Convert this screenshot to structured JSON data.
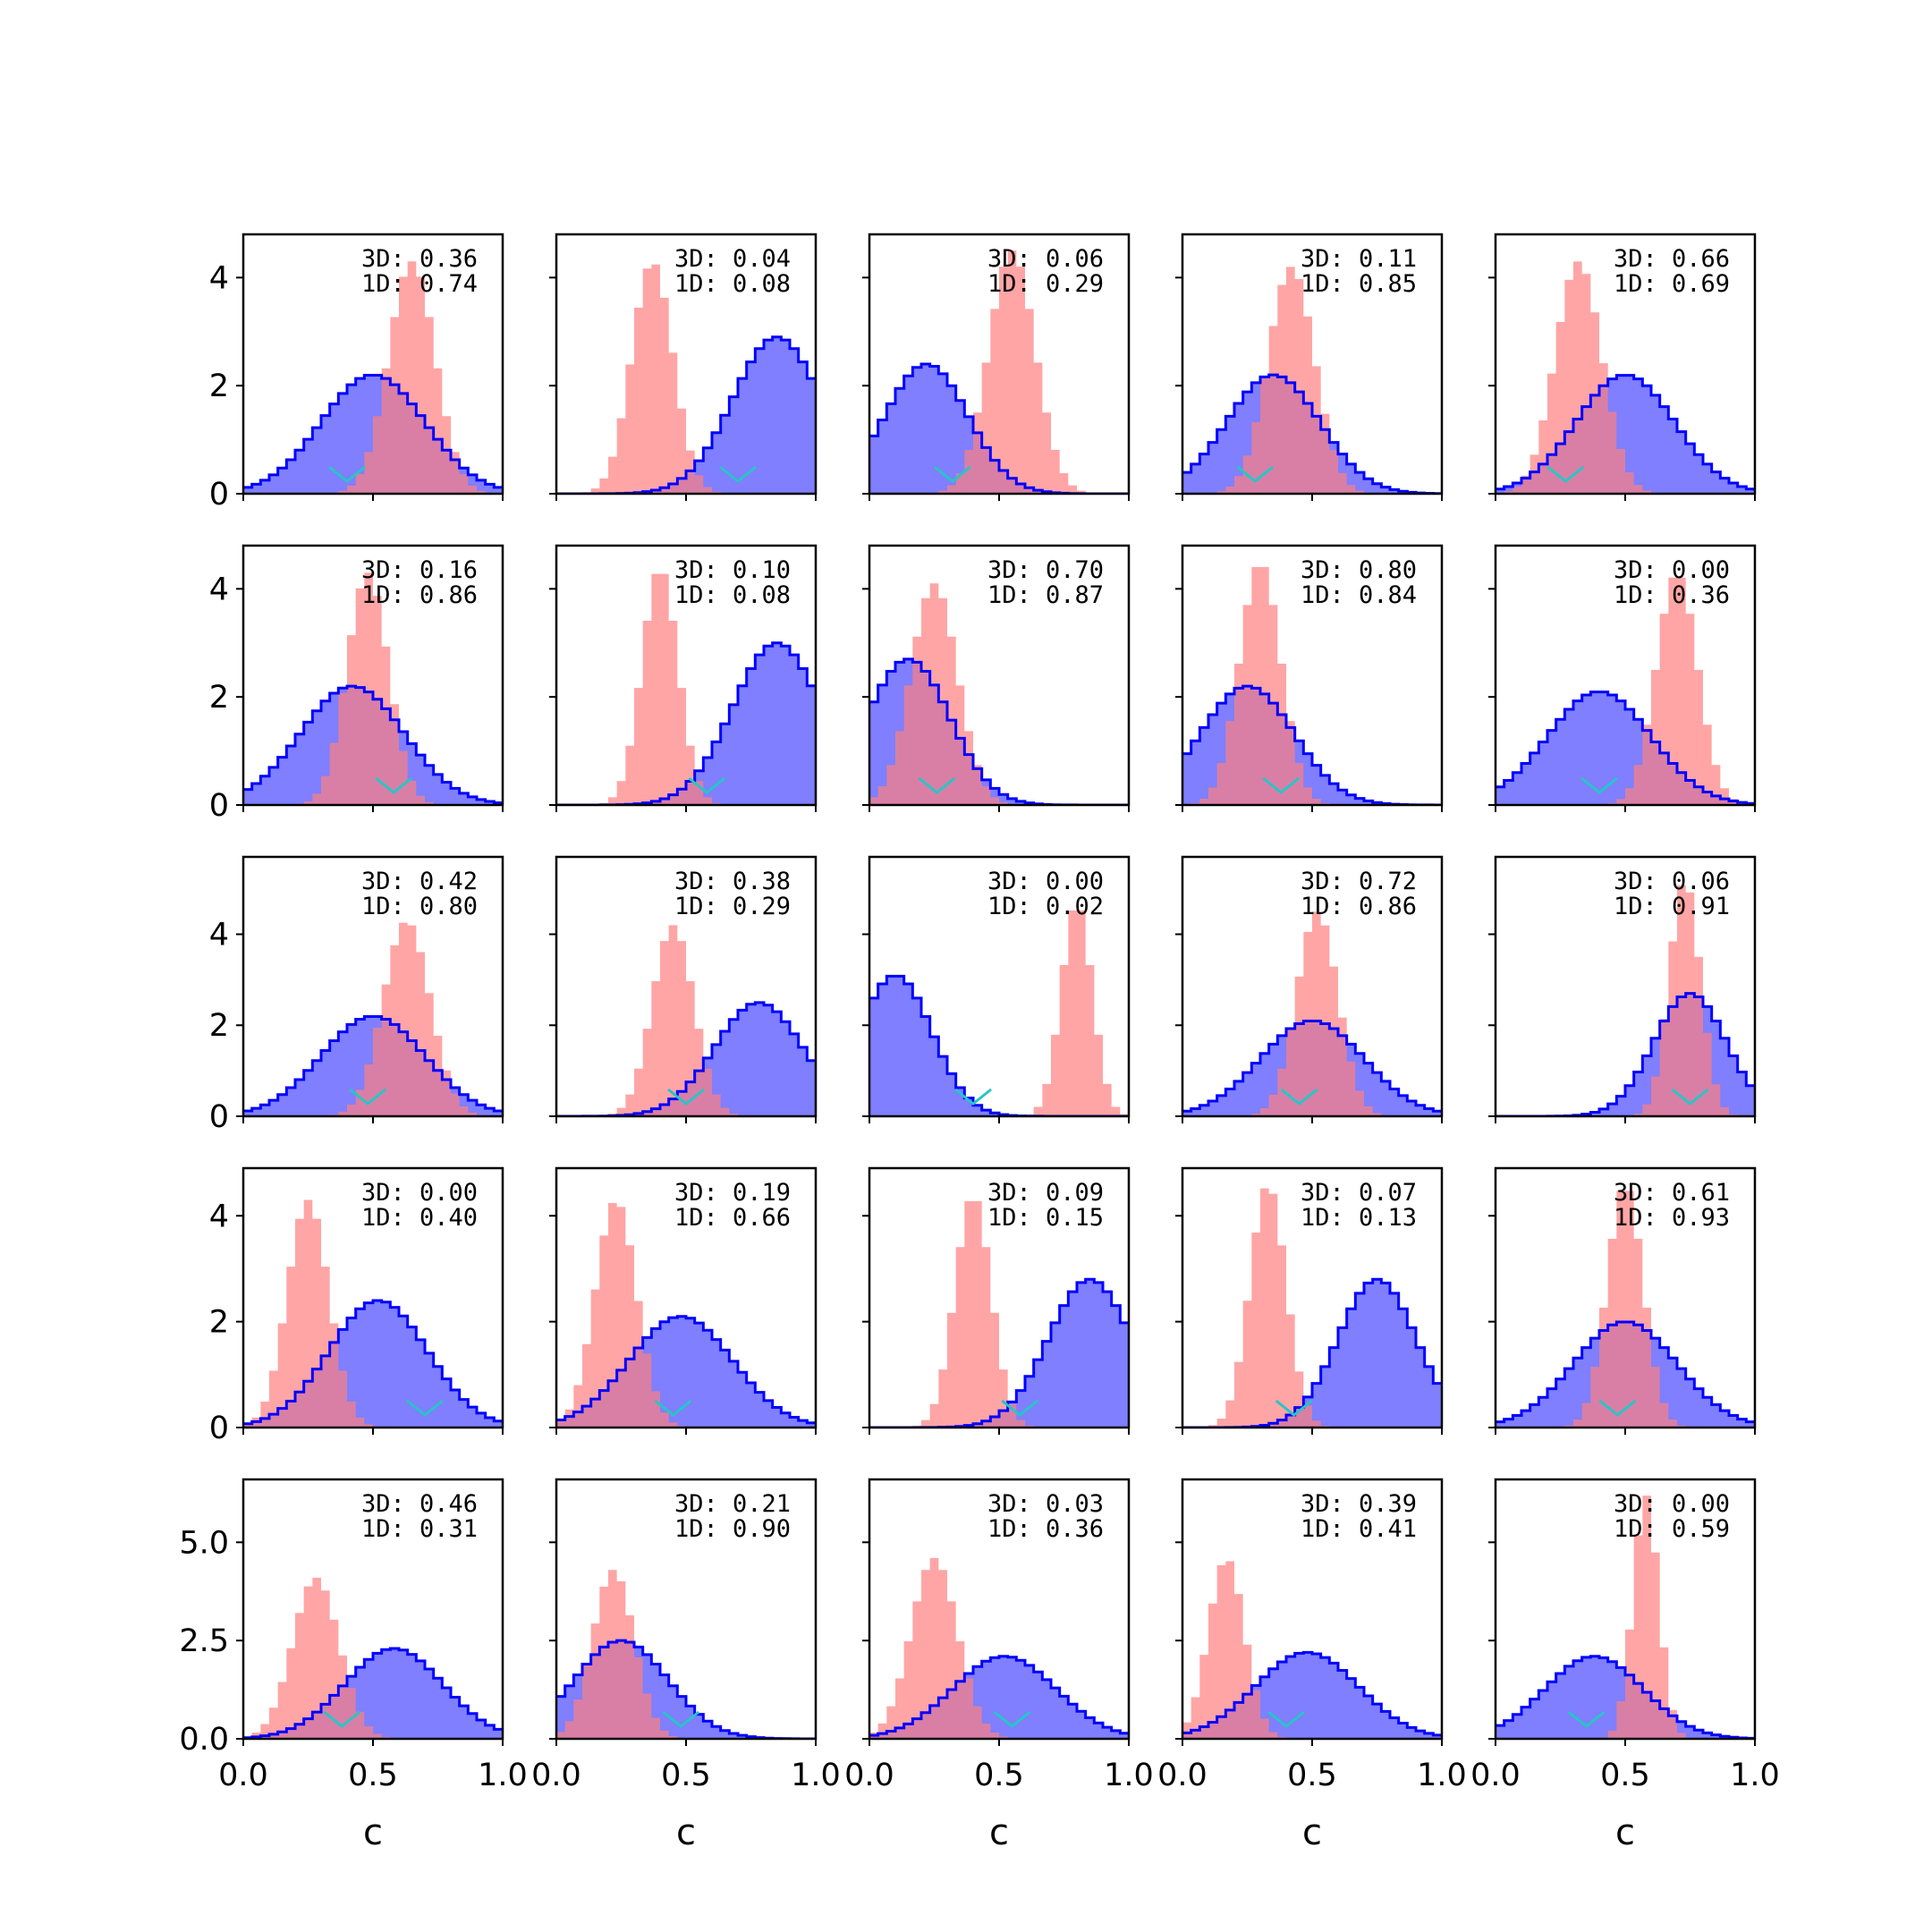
{
  "chart_data": {
    "type": "histogram-grid",
    "rows": 5,
    "cols": 5,
    "xlim": [
      0,
      1
    ],
    "xticks": [
      "0.0",
      "0.5",
      "1.0"
    ],
    "xlabel": "c",
    "row_axes": [
      {
        "ylim": [
          0,
          4.8
        ],
        "yticks": [
          {
            "value": 0,
            "label": "0"
          },
          {
            "value": 2,
            "label": "2"
          },
          {
            "value": 4,
            "label": "4"
          }
        ]
      },
      {
        "ylim": [
          0,
          4.8
        ],
        "yticks": [
          {
            "value": 0,
            "label": "0"
          },
          {
            "value": 2,
            "label": "2"
          },
          {
            "value": 4,
            "label": "4"
          }
        ]
      },
      {
        "ylim": [
          0,
          5.7
        ],
        "yticks": [
          {
            "value": 0,
            "label": "0"
          },
          {
            "value": 2,
            "label": "2"
          },
          {
            "value": 4,
            "label": "4"
          }
        ]
      },
      {
        "ylim": [
          0,
          4.9
        ],
        "yticks": [
          {
            "value": 0,
            "label": "0"
          },
          {
            "value": 2,
            "label": "2"
          },
          {
            "value": 4,
            "label": "4"
          }
        ]
      },
      {
        "ylim": [
          0,
          6.6
        ],
        "yticks": [
          {
            "value": 0,
            "label": "0.0"
          },
          {
            "value": 2.5,
            "label": "2.5"
          },
          {
            "value": 5,
            "label": "5.0"
          }
        ]
      }
    ],
    "colors": {
      "blue_fill": "#7f7fff",
      "blue_edge": "#0000ff",
      "red_fill": "#ff7f7f",
      "marker": "#26c6c6"
    },
    "bins": 30,
    "panels": [
      {
        "row": 0,
        "col": 0,
        "label3d": "3D: 0.36",
        "label1d": "1D: 0.74",
        "blue": {
          "mu": 0.5,
          "sd": 0.2,
          "peak": 2.2
        },
        "red": {
          "mu": 0.65,
          "sd": 0.09,
          "peak": 4.3
        },
        "marker": 0.4
      },
      {
        "row": 0,
        "col": 1,
        "label3d": "3D: 0.04",
        "label1d": "1D: 0.08",
        "blue": {
          "mu": 0.85,
          "sd": 0.17,
          "peak": 2.9
        },
        "red": {
          "mu": 0.37,
          "sd": 0.08,
          "peak": 4.3
        },
        "marker": 0.7
      },
      {
        "row": 0,
        "col": 2,
        "label3d": "3D: 0.06",
        "label1d": "1D: 0.29",
        "blue": {
          "mu": 0.22,
          "sd": 0.16,
          "peak": 2.4
        },
        "red": {
          "mu": 0.55,
          "sd": 0.09,
          "peak": 4.5
        },
        "marker": 0.32
      },
      {
        "row": 0,
        "col": 3,
        "label3d": "3D: 0.11",
        "label1d": "1D: 0.85",
        "blue": {
          "mu": 0.35,
          "sd": 0.18,
          "peak": 2.2
        },
        "red": {
          "mu": 0.42,
          "sd": 0.09,
          "peak": 4.2
        },
        "marker": 0.28
      },
      {
        "row": 0,
        "col": 4,
        "label3d": "3D: 0.66",
        "label1d": "1D: 0.69",
        "blue": {
          "mu": 0.5,
          "sd": 0.19,
          "peak": 2.2
        },
        "red": {
          "mu": 0.32,
          "sd": 0.09,
          "peak": 4.3
        },
        "marker": 0.27
      },
      {
        "row": 1,
        "col": 0,
        "label3d": "3D: 0.16",
        "label1d": "1D: 0.86",
        "blue": {
          "mu": 0.42,
          "sd": 0.2,
          "peak": 2.2
        },
        "red": {
          "mu": 0.48,
          "sd": 0.08,
          "peak": 4.3
        },
        "marker": 0.58
      },
      {
        "row": 1,
        "col": 1,
        "label3d": "3D: 0.10",
        "label1d": "1D: 0.08",
        "blue": {
          "mu": 0.85,
          "sd": 0.17,
          "peak": 3.0
        },
        "red": {
          "mu": 0.4,
          "sd": 0.07,
          "peak": 4.4
        },
        "marker": 0.58
      },
      {
        "row": 1,
        "col": 2,
        "label3d": "3D: 0.70",
        "label1d": "1D: 0.87",
        "blue": {
          "mu": 0.15,
          "sd": 0.16,
          "peak": 2.7
        },
        "red": {
          "mu": 0.25,
          "sd": 0.09,
          "peak": 4.1
        },
        "marker": 0.26
      },
      {
        "row": 1,
        "col": 3,
        "label3d": "3D: 0.80",
        "label1d": "1D: 0.84",
        "blue": {
          "mu": 0.25,
          "sd": 0.18,
          "peak": 2.2
        },
        "red": {
          "mu": 0.3,
          "sd": 0.08,
          "peak": 4.5
        },
        "marker": 0.38
      },
      {
        "row": 1,
        "col": 4,
        "label3d": "3D: 0.00",
        "label1d": "1D: 0.36",
        "blue": {
          "mu": 0.4,
          "sd": 0.2,
          "peak": 2.1
        },
        "red": {
          "mu": 0.7,
          "sd": 0.08,
          "peak": 4.3
        },
        "marker": 0.4
      },
      {
        "row": 2,
        "col": 0,
        "label3d": "3D: 0.42",
        "label1d": "1D: 0.80",
        "blue": {
          "mu": 0.5,
          "sd": 0.2,
          "peak": 2.2
        },
        "red": {
          "mu": 0.63,
          "sd": 0.09,
          "peak": 4.3
        },
        "marker": 0.48
      },
      {
        "row": 2,
        "col": 1,
        "label3d": "3D: 0.38",
        "label1d": "1D: 0.29",
        "blue": {
          "mu": 0.78,
          "sd": 0.17,
          "peak": 2.5
        },
        "red": {
          "mu": 0.45,
          "sd": 0.08,
          "peak": 4.2
        },
        "marker": 0.5
      },
      {
        "row": 2,
        "col": 2,
        "label3d": "3D: 0.00",
        "label1d": "1D: 0.02",
        "blue": {
          "mu": 0.1,
          "sd": 0.14,
          "peak": 3.1
        },
        "red": {
          "mu": 0.8,
          "sd": 0.06,
          "peak": 4.7
        },
        "marker": 0.4
      },
      {
        "row": 2,
        "col": 3,
        "label3d": "3D: 0.72",
        "label1d": "1D: 0.86",
        "blue": {
          "mu": 0.5,
          "sd": 0.2,
          "peak": 2.1
        },
        "red": {
          "mu": 0.52,
          "sd": 0.08,
          "peak": 4.5
        },
        "marker": 0.45
      },
      {
        "row": 2,
        "col": 4,
        "label3d": "3D: 0.06",
        "label1d": "1D: 0.91",
        "blue": {
          "mu": 0.75,
          "sd": 0.14,
          "peak": 2.7
        },
        "red": {
          "mu": 0.73,
          "sd": 0.06,
          "peak": 5.2
        },
        "marker": 0.75
      },
      {
        "row": 3,
        "col": 0,
        "label3d": "3D: 0.00",
        "label1d": "1D: 0.40",
        "blue": {
          "mu": 0.52,
          "sd": 0.19,
          "peak": 2.4
        },
        "red": {
          "mu": 0.25,
          "sd": 0.08,
          "peak": 4.3
        },
        "marker": 0.7
      },
      {
        "row": 3,
        "col": 1,
        "label3d": "3D: 0.19",
        "label1d": "1D: 0.66",
        "blue": {
          "mu": 0.48,
          "sd": 0.2,
          "peak": 2.1
        },
        "red": {
          "mu": 0.23,
          "sd": 0.08,
          "peak": 4.3
        },
        "marker": 0.45
      },
      {
        "row": 3,
        "col": 2,
        "label3d": "3D: 0.09",
        "label1d": "1D: 0.15",
        "blue": {
          "mu": 0.85,
          "sd": 0.16,
          "peak": 2.8
        },
        "red": {
          "mu": 0.4,
          "sd": 0.07,
          "peak": 4.4
        },
        "marker": 0.58
      },
      {
        "row": 3,
        "col": 3,
        "label3d": "3D: 0.07",
        "label1d": "1D: 0.13",
        "blue": {
          "mu": 0.75,
          "sd": 0.15,
          "peak": 2.8
        },
        "red": {
          "mu": 0.33,
          "sd": 0.07,
          "peak": 4.6
        },
        "marker": 0.43
      },
      {
        "row": 3,
        "col": 4,
        "label3d": "3D: 0.61",
        "label1d": "1D: 0.93",
        "blue": {
          "mu": 0.5,
          "sd": 0.2,
          "peak": 2.0
        },
        "red": {
          "mu": 0.5,
          "sd": 0.07,
          "peak": 4.6
        },
        "marker": 0.47
      },
      {
        "row": 4,
        "col": 0,
        "label3d": "3D: 0.46",
        "label1d": "1D: 0.31",
        "blue": {
          "mu": 0.58,
          "sd": 0.19,
          "peak": 2.3
        },
        "red": {
          "mu": 0.28,
          "sd": 0.09,
          "peak": 4.1
        },
        "marker": 0.38
      },
      {
        "row": 4,
        "col": 1,
        "label3d": "3D: 0.21",
        "label1d": "1D: 0.90",
        "blue": {
          "mu": 0.25,
          "sd": 0.18,
          "peak": 2.5
        },
        "red": {
          "mu": 0.22,
          "sd": 0.08,
          "peak": 4.3
        },
        "marker": 0.48
      },
      {
        "row": 4,
        "col": 2,
        "label3d": "3D: 0.03",
        "label1d": "1D: 0.36",
        "blue": {
          "mu": 0.52,
          "sd": 0.2,
          "peak": 2.1
        },
        "red": {
          "mu": 0.25,
          "sd": 0.09,
          "peak": 4.6
        },
        "marker": 0.55
      },
      {
        "row": 4,
        "col": 3,
        "label3d": "3D: 0.39",
        "label1d": "1D: 0.41",
        "blue": {
          "mu": 0.48,
          "sd": 0.2,
          "peak": 2.2
        },
        "red": {
          "mu": 0.17,
          "sd": 0.07,
          "peak": 4.6
        },
        "marker": 0.4
      },
      {
        "row": 4,
        "col": 4,
        "label3d": "3D: 0.00",
        "label1d": "1D: 0.59",
        "blue": {
          "mu": 0.38,
          "sd": 0.19,
          "peak": 2.1
        },
        "red": {
          "mu": 0.58,
          "sd": 0.05,
          "peak": 6.2
        },
        "marker": 0.35
      }
    ]
  }
}
